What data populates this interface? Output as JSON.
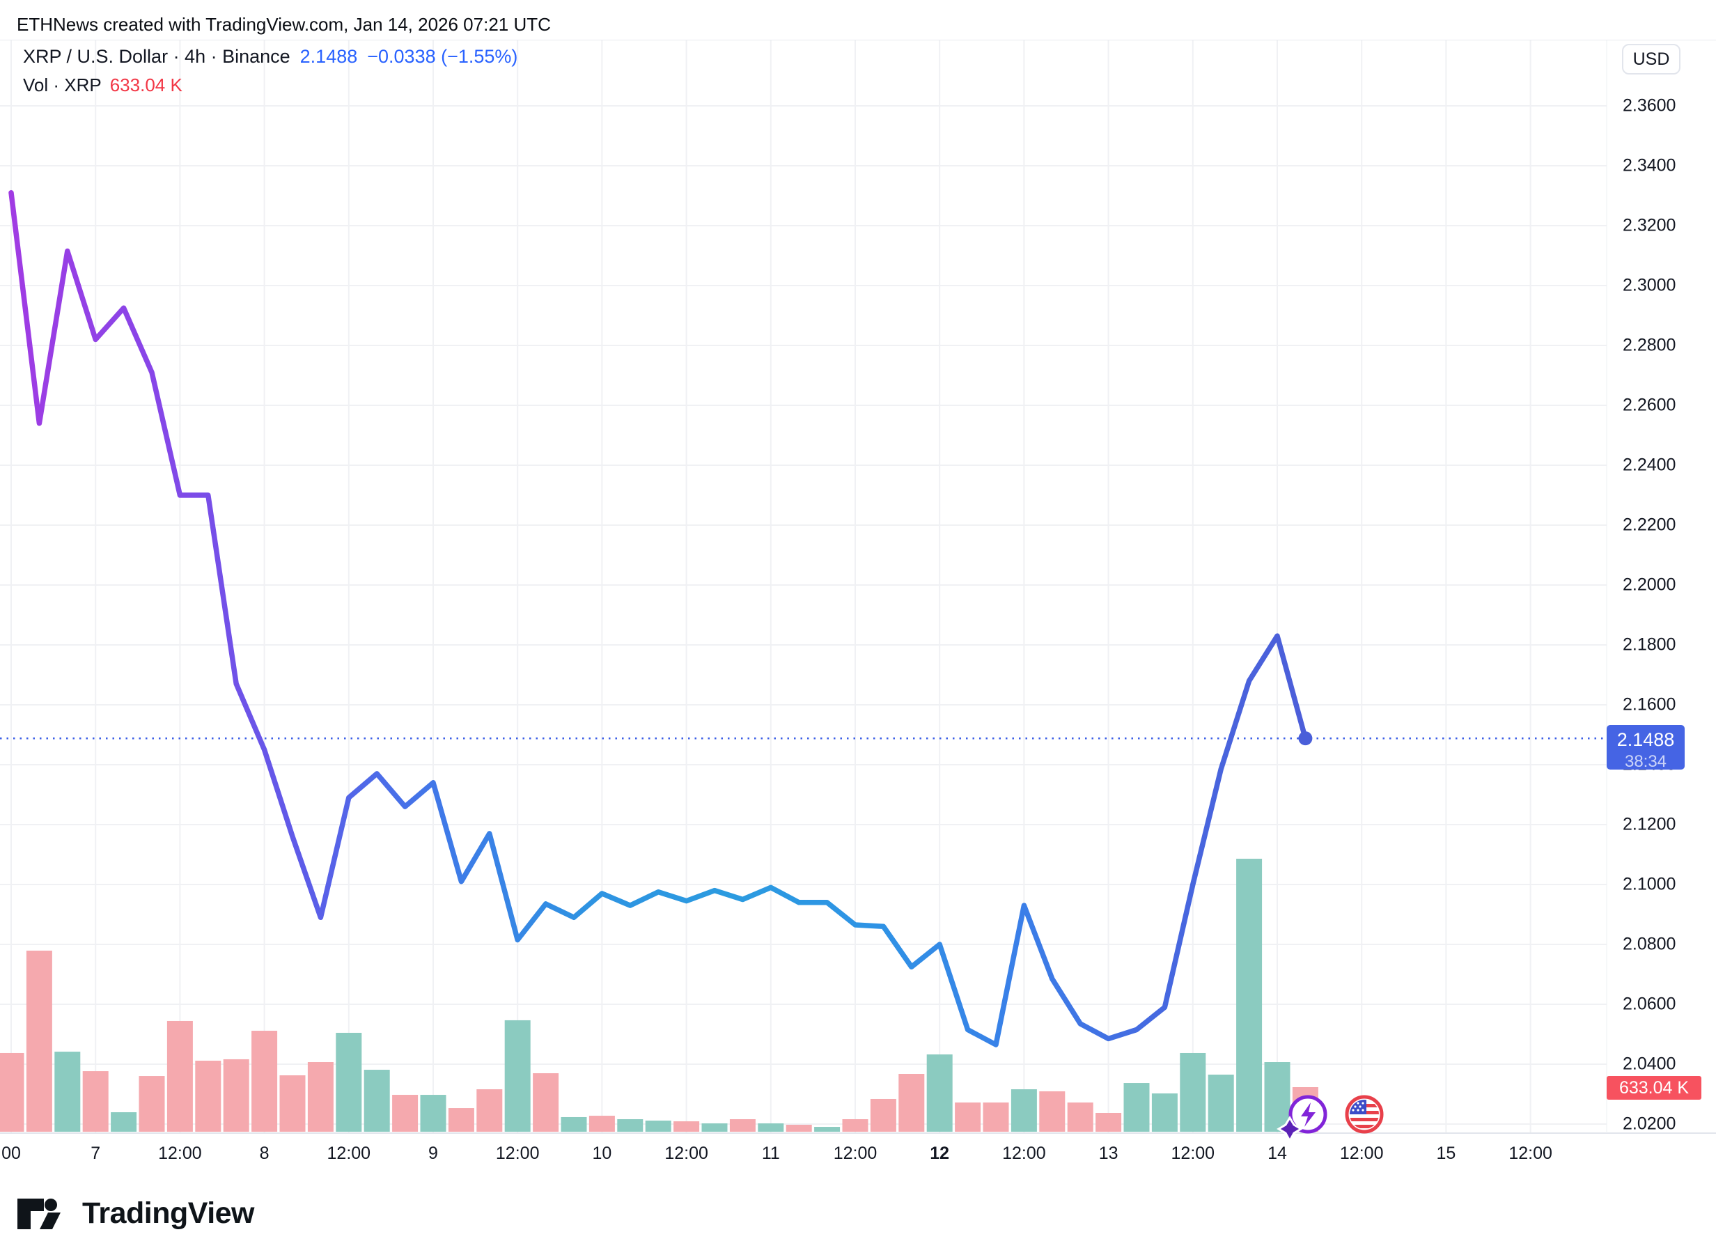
{
  "note": "ETHNews created with TradingView.com, Jan 14, 2026 07:21 UTC",
  "header": {
    "symbol": "XRP / U.S. Dollar · 4h · Binance",
    "price": "2.1488",
    "change": "−0.0338 (−1.55%)",
    "vol_label": "Vol · XRP",
    "vol_value": "633.04 K"
  },
  "axis_currency_button": "USD",
  "price_badge": {
    "price": "2.1488",
    "countdown": "38:34"
  },
  "volume_badge": "633.04 K",
  "logo_text": "TradingView",
  "colors": {
    "accent_blue": "#2962ff",
    "accent_red": "#f23645",
    "badge_blue": "#4564e4",
    "badge_red": "#f7525f",
    "grid": "#f0f1f4",
    "axis_text": "#131722",
    "vol_up": "#8bcbc0",
    "vol_down": "#f5a9ae",
    "dotted_line": "#3c5fe6",
    "end_dot": "#4a5fd9",
    "line_gradient": [
      "#a03be3",
      "#8746e8",
      "#5e5be8",
      "#3f79e8",
      "#2e93e2",
      "#2b9be0",
      "#2e93e5",
      "#3a7fe8",
      "#4668e0",
      "#4c5ed9"
    ]
  },
  "chart_data": {
    "type": "line",
    "title": "XRP / U.S. Dollar 4h Binance line chart with volume",
    "interval": "4h",
    "ylabel": "USD price",
    "y_min": 2.02,
    "y_max": 2.36,
    "grid": true,
    "y_ticks": [
      "2.3600",
      "2.3400",
      "2.3200",
      "2.3000",
      "2.2800",
      "2.2600",
      "2.2400",
      "2.2200",
      "2.2000",
      "2.1800",
      "2.1600",
      "2.1400",
      "2.1200",
      "2.1000",
      "2.0800",
      "2.0600",
      "2.0400",
      "2.0200"
    ],
    "x_ticks": [
      {
        "bar": 0,
        "label": "00"
      },
      {
        "bar": 3,
        "label": "7"
      },
      {
        "bar": 6,
        "label": "12:00"
      },
      {
        "bar": 9,
        "label": "8"
      },
      {
        "bar": 12,
        "label": "12:00"
      },
      {
        "bar": 15,
        "label": "9"
      },
      {
        "bar": 18,
        "label": "12:00"
      },
      {
        "bar": 21,
        "label": "10"
      },
      {
        "bar": 24,
        "label": "12:00"
      },
      {
        "bar": 27,
        "label": "11"
      },
      {
        "bar": 30,
        "label": "12:00"
      },
      {
        "bar": 33,
        "label": "12",
        "bold": true
      },
      {
        "bar": 36,
        "label": "12:00"
      },
      {
        "bar": 39,
        "label": "13"
      },
      {
        "bar": 42,
        "label": "12:00"
      },
      {
        "bar": 45,
        "label": "14"
      },
      {
        "bar": 48,
        "label": "12:00"
      },
      {
        "bar": 51,
        "label": "15"
      },
      {
        "bar": 54,
        "label": "12:00"
      }
    ],
    "close": [
      2.331,
      2.254,
      2.3115,
      2.282,
      2.2925,
      2.271,
      2.23,
      2.23,
      2.167,
      2.145,
      2.116,
      2.089,
      2.129,
      2.137,
      2.126,
      2.134,
      2.101,
      2.117,
      2.0815,
      2.0935,
      2.089,
      2.097,
      2.093,
      2.0975,
      2.0945,
      2.098,
      2.095,
      2.099,
      2.094,
      2.094,
      2.0865,
      2.086,
      2.0725,
      2.08,
      2.0515,
      2.0465,
      2.093,
      2.0685,
      2.0535,
      2.0485,
      2.0515,
      2.059,
      2.1,
      2.1385,
      2.168,
      2.183,
      2.1488
    ],
    "volume_k": [
      1118,
      2572,
      1137,
      860,
      277,
      791,
      1573,
      1009,
      1029,
      1434,
      801,
      989,
      1405,
      880,
      524,
      524,
      336,
      603,
      1583,
      831,
      208,
      227,
      178,
      158,
      148,
      119,
      178,
      119,
      99,
      69,
      178,
      465,
      821,
      1098,
      415,
      415,
      603,
      574,
      415,
      267,
      692,
      544,
      1118,
      811,
      3877,
      989,
      633
    ],
    "bar_dir": [
      "d",
      "d",
      "u",
      "d",
      "u",
      "d",
      "d",
      "d",
      "d",
      "d",
      "d",
      "d",
      "u",
      "u",
      "d",
      "u",
      "d",
      "d",
      "u",
      "d",
      "u",
      "d",
      "u",
      "u",
      "d",
      "u",
      "d",
      "u",
      "d",
      "u",
      "d",
      "d",
      "d",
      "u",
      "d",
      "d",
      "u",
      "d",
      "d",
      "d",
      "u",
      "u",
      "u",
      "u",
      "u",
      "u",
      "d"
    ],
    "last_price": 2.1488,
    "last_volume_k": 633.04,
    "countdown": "38:34",
    "legend_position": "top-left"
  }
}
